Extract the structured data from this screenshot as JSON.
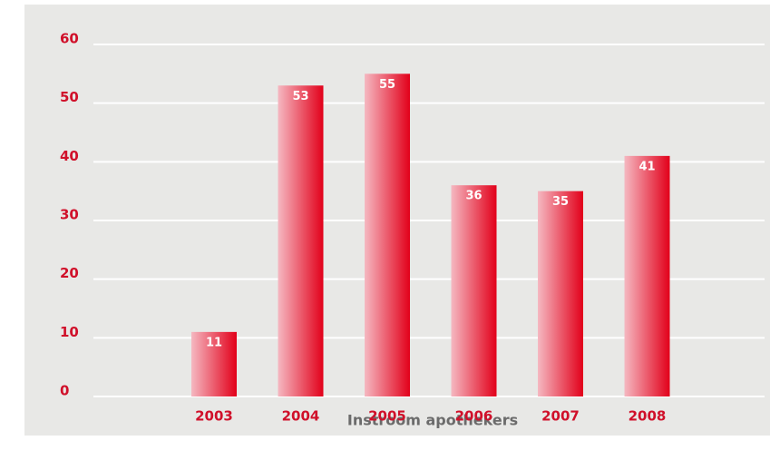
{
  "chart_data": {
    "type": "bar",
    "x_label": "Instroom apothekers",
    "categories": [
      "2003",
      "2004",
      "2005",
      "2006",
      "2007",
      "2008"
    ],
    "values": [
      11,
      53,
      55,
      36,
      35,
      41
    ],
    "color": "#e2001a",
    "ylim": [
      0,
      60
    ],
    "yticks": [
      0,
      10,
      20,
      30,
      40,
      50,
      60
    ],
    "grid": true
  }
}
